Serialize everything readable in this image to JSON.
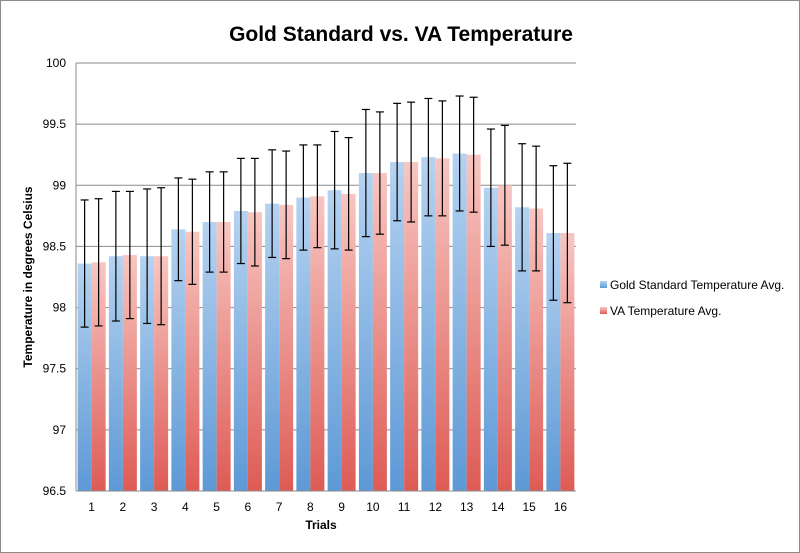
{
  "chart_data": {
    "type": "bar",
    "title": "Gold Standard vs. VA Temperature",
    "xlabel": "Trials",
    "ylabel": "Temperature in degrees Celsius",
    "ylim": [
      96.5,
      100
    ],
    "yticks": [
      "96.5",
      "97",
      "97.5",
      "98",
      "98.5",
      "99",
      "99.5",
      "100"
    ],
    "ytick_values": [
      96.5,
      97,
      97.5,
      98,
      98.5,
      99,
      99.5,
      100
    ],
    "categories": [
      "1",
      "2",
      "3",
      "4",
      "5",
      "6",
      "7",
      "8",
      "9",
      "10",
      "11",
      "12",
      "13",
      "14",
      "15",
      "16"
    ],
    "grid": true,
    "legend_position": "right",
    "series": [
      {
        "name": "Gold Standard Temperature Avg.",
        "color": "#6fa8dc",
        "values": [
          98.36,
          98.42,
          98.42,
          98.64,
          98.7,
          98.79,
          98.85,
          98.9,
          98.96,
          99.1,
          99.19,
          99.23,
          99.26,
          98.98,
          98.82,
          98.61
        ],
        "error": [
          0.52,
          0.53,
          0.55,
          0.42,
          0.41,
          0.43,
          0.44,
          0.43,
          0.48,
          0.52,
          0.48,
          0.48,
          0.47,
          0.48,
          0.52,
          0.55
        ]
      },
      {
        "name": "VA Temperature Avg.",
        "color": "#ea8a84",
        "values": [
          98.37,
          98.43,
          98.42,
          98.62,
          98.7,
          98.78,
          98.84,
          98.91,
          98.93,
          99.1,
          99.19,
          99.22,
          99.25,
          99.0,
          98.81,
          98.61
        ],
        "error": [
          0.52,
          0.52,
          0.56,
          0.43,
          0.41,
          0.44,
          0.44,
          0.42,
          0.46,
          0.5,
          0.49,
          0.47,
          0.47,
          0.49,
          0.51,
          0.57
        ]
      }
    ]
  }
}
